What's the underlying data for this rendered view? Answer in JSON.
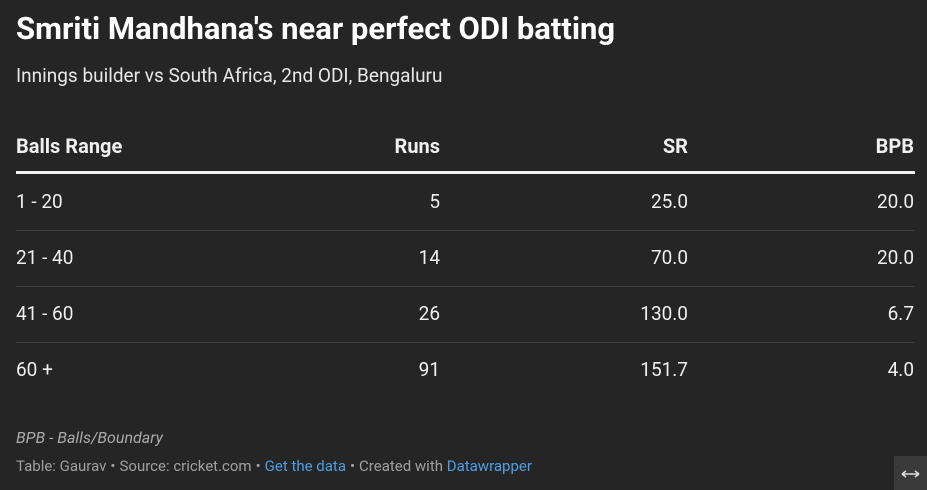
{
  "header": {
    "title": "Smriti Mandhana's near perfect ODI batting",
    "subtitle": "Innings builder vs South Africa, 2nd ODI, Bengaluru"
  },
  "table": {
    "columns": [
      "Balls Range",
      "Runs",
      "SR",
      "BPB"
    ],
    "rows": [
      [
        "1 - 20",
        "5",
        "25.0",
        "20.0"
      ],
      [
        "21 - 40",
        "14",
        "70.0",
        "20.0"
      ],
      [
        "41 - 60",
        "26",
        "130.0",
        "6.7"
      ],
      [
        "60 +",
        "91",
        "151.7",
        "4.0"
      ]
    ]
  },
  "note": "BPB - Balls/Boundary",
  "footer": {
    "separator": "•",
    "items": [
      {
        "text": "Table: Gaurav"
      },
      {
        "text": "Source: cricket.com"
      },
      {
        "text": "Get the data",
        "link": true
      },
      {
        "text": "Created with",
        "link_text": "Datawrapper"
      }
    ]
  }
}
